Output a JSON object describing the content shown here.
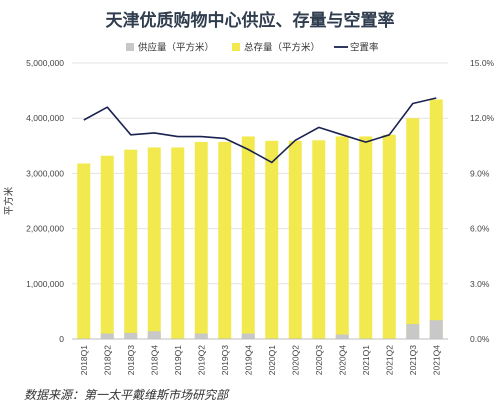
{
  "chart_data": {
    "type": "bar",
    "title": "天津优质购物中心供应、存量与空置率",
    "categories": [
      "2018Q1",
      "2018Q2",
      "2018Q3",
      "2018Q4",
      "2019Q1",
      "2019Q2",
      "2019Q3",
      "2019Q4",
      "2020Q1",
      "2020Q2",
      "2020Q3",
      "2020Q4",
      "2021Q1",
      "2021Q2",
      "2021Q3",
      "2021Q4"
    ],
    "series": [
      {
        "name": "供应量（平方米）",
        "type": "bar",
        "color": "#c8c8c8",
        "values": [
          0,
          100000,
          110000,
          140000,
          0,
          100000,
          0,
          100000,
          0,
          0,
          0,
          80000,
          0,
          0,
          270000,
          340000
        ]
      },
      {
        "name": "总存量（平方米）",
        "type": "bar",
        "color": "#f2e94e",
        "values": [
          3180000,
          3320000,
          3430000,
          3470000,
          3470000,
          3570000,
          3570000,
          3670000,
          3590000,
          3590000,
          3600000,
          3670000,
          3670000,
          3700000,
          4000000,
          4340000
        ]
      },
      {
        "name": "空置率",
        "type": "line",
        "color": "#1a2250",
        "axis": "right",
        "values": [
          11.9,
          12.6,
          11.1,
          11.2,
          11.0,
          11.0,
          10.9,
          10.3,
          9.6,
          10.8,
          11.5,
          11.1,
          10.7,
          11.1,
          12.8,
          13.1
        ]
      }
    ],
    "ylabel": "平方米",
    "ylim": [
      0,
      5000000
    ],
    "y_ticks": [
      "0",
      "1,000,000",
      "2,000,000",
      "3,000,000",
      "4,000,000",
      "5,000,000"
    ],
    "y2lim": [
      0,
      15
    ],
    "y2_ticks": [
      "0.0%",
      "3.0%",
      "6.0%",
      "9.0%",
      "12.0%",
      "15.0%"
    ],
    "legend_position": "top",
    "grid": "horizontal"
  },
  "source_note": "数据来源：第一太平戴维斯市场研究部"
}
